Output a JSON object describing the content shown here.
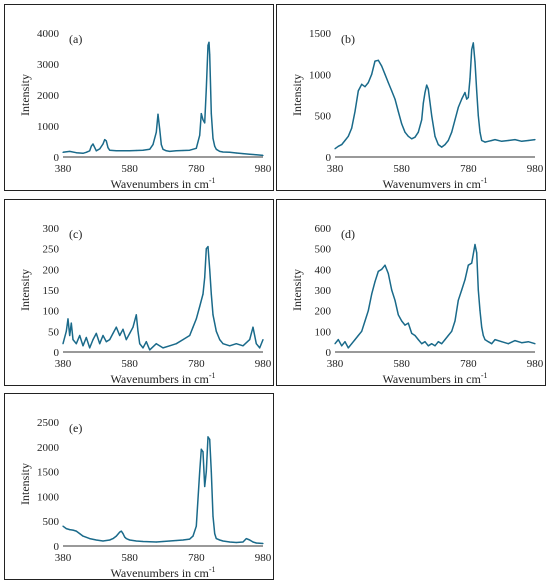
{
  "colors": {
    "series": "#1a6a8a",
    "frame": "#222222"
  },
  "chart_data": [
    {
      "type": "line",
      "panel_label": "(a)",
      "xlabel": "Wavenumbers in cm",
      "xlabel_sup": "-1",
      "ylabel": "Intensity",
      "xlim": [
        380,
        980
      ],
      "ylim": [
        0,
        4000
      ],
      "x_ticks": [
        380,
        580,
        780,
        980
      ],
      "y_ticks": [
        0,
        1000,
        2000,
        3000,
        4000
      ],
      "series": [
        {
          "x": [
            380,
            400,
            420,
            440,
            450,
            460,
            465,
            470,
            480,
            490,
            500,
            505,
            510,
            515,
            520,
            540,
            560,
            580,
            600,
            620,
            640,
            650,
            660,
            665,
            670,
            675,
            680,
            690,
            700,
            720,
            740,
            760,
            780,
            790,
            795,
            800,
            805,
            810,
            815,
            818,
            820,
            822,
            825,
            830,
            835,
            840,
            850,
            860,
            880,
            900,
            920,
            940,
            960,
            980
          ],
          "y": [
            150,
            180,
            140,
            120,
            150,
            200,
            350,
            420,
            200,
            260,
            420,
            560,
            520,
            300,
            220,
            200,
            200,
            200,
            210,
            220,
            250,
            400,
            800,
            1380,
            900,
            400,
            250,
            200,
            180,
            200,
            210,
            220,
            280,
            700,
            1400,
            1200,
            1100,
            2200,
            3600,
            3700,
            3300,
            2600,
            1400,
            600,
            350,
            250,
            180,
            160,
            150,
            130,
            110,
            90,
            70,
            50
          ]
        }
      ]
    },
    {
      "type": "line",
      "panel_label": "(b)",
      "xlabel": "Wavenumvers in cm",
      "xlabel_sup": "-1",
      "ylabel": "Intensity",
      "xlim": [
        380,
        980
      ],
      "ylim": [
        0,
        1500
      ],
      "x_ticks": [
        380,
        580,
        780,
        980
      ],
      "y_ticks": [
        0,
        500,
        1000,
        1500
      ],
      "series": [
        {
          "x": [
            380,
            390,
            400,
            410,
            420,
            430,
            440,
            450,
            460,
            470,
            480,
            490,
            500,
            510,
            520,
            530,
            540,
            550,
            560,
            570,
            580,
            590,
            600,
            610,
            620,
            630,
            640,
            645,
            650,
            655,
            660,
            670,
            680,
            690,
            700,
            710,
            720,
            730,
            740,
            750,
            760,
            770,
            775,
            780,
            785,
            790,
            795,
            800,
            805,
            810,
            815,
            820,
            830,
            840,
            850,
            860,
            880,
            900,
            920,
            940,
            960,
            980
          ],
          "y": [
            100,
            130,
            150,
            200,
            250,
            350,
            550,
            800,
            880,
            850,
            900,
            1000,
            1160,
            1170,
            1100,
            1000,
            900,
            800,
            700,
            550,
            400,
            300,
            250,
            220,
            240,
            300,
            450,
            650,
            780,
            870,
            820,
            500,
            250,
            150,
            120,
            150,
            200,
            300,
            450,
            600,
            700,
            780,
            700,
            720,
            950,
            1300,
            1380,
            1150,
            800,
            500,
            300,
            200,
            180,
            190,
            200,
            210,
            190,
            200,
            210,
            190,
            200,
            210
          ]
        }
      ]
    },
    {
      "type": "line",
      "panel_label": "(c)",
      "xlabel": "Wavenumbers in cm",
      "xlabel_sup": "-1",
      "ylabel": "Intensity",
      "xlim": [
        380,
        980
      ],
      "ylim": [
        0,
        300
      ],
      "x_ticks": [
        380,
        580,
        780,
        980
      ],
      "y_ticks": [
        0,
        50,
        100,
        150,
        200,
        250,
        300
      ],
      "series": [
        {
          "x": [
            380,
            390,
            395,
            400,
            405,
            410,
            420,
            430,
            440,
            450,
            460,
            470,
            480,
            490,
            500,
            510,
            520,
            530,
            540,
            550,
            560,
            570,
            580,
            590,
            600,
            605,
            610,
            620,
            630,
            640,
            660,
            680,
            700,
            720,
            740,
            760,
            770,
            780,
            790,
            800,
            805,
            810,
            815,
            820,
            825,
            830,
            840,
            850,
            860,
            880,
            900,
            920,
            940,
            950,
            960,
            970,
            980
          ],
          "y": [
            20,
            50,
            80,
            40,
            70,
            30,
            20,
            40,
            15,
            35,
            10,
            30,
            45,
            20,
            40,
            25,
            30,
            45,
            60,
            40,
            55,
            30,
            45,
            60,
            90,
            50,
            20,
            10,
            25,
            5,
            20,
            10,
            15,
            20,
            30,
            40,
            60,
            80,
            110,
            140,
            180,
            250,
            255,
            200,
            140,
            90,
            50,
            30,
            20,
            15,
            20,
            15,
            30,
            60,
            20,
            10,
            30
          ]
        }
      ]
    },
    {
      "type": "line",
      "panel_label": "(d)",
      "xlabel": "Wavenumbers in cm",
      "xlabel_sup": "-1",
      "ylabel": "Intensity",
      "xlim": [
        380,
        980
      ],
      "ylim": [
        0,
        600
      ],
      "x_ticks": [
        380,
        580,
        780,
        980
      ],
      "y_ticks": [
        0,
        100,
        200,
        300,
        400,
        500,
        600
      ],
      "series": [
        {
          "x": [
            380,
            390,
            400,
            410,
            420,
            430,
            440,
            450,
            460,
            470,
            480,
            490,
            500,
            510,
            520,
            530,
            540,
            550,
            560,
            570,
            580,
            590,
            600,
            610,
            620,
            630,
            640,
            650,
            660,
            670,
            680,
            690,
            700,
            710,
            720,
            730,
            740,
            750,
            760,
            770,
            780,
            790,
            800,
            805,
            810,
            815,
            820,
            825,
            830,
            840,
            850,
            860,
            880,
            900,
            920,
            940,
            960,
            980
          ],
          "y": [
            40,
            60,
            30,
            50,
            20,
            40,
            60,
            80,
            100,
            150,
            200,
            280,
            340,
            390,
            400,
            420,
            380,
            300,
            250,
            180,
            150,
            130,
            140,
            90,
            80,
            60,
            40,
            50,
            30,
            40,
            30,
            50,
            40,
            60,
            80,
            100,
            150,
            250,
            300,
            350,
            420,
            430,
            520,
            480,
            300,
            200,
            120,
            80,
            60,
            50,
            40,
            60,
            50,
            40,
            55,
            45,
            50,
            40
          ]
        }
      ]
    },
    {
      "type": "line",
      "panel_label": "(e)",
      "xlabel": "Wavenumbers in cm",
      "xlabel_sup": "-1",
      "ylabel": "Intensity",
      "xlim": [
        380,
        980
      ],
      "ylim": [
        0,
        2500
      ],
      "x_ticks": [
        380,
        580,
        780,
        980
      ],
      "y_ticks": [
        0,
        500,
        1000,
        1500,
        2000,
        2500
      ],
      "series": [
        {
          "x": [
            380,
            390,
            400,
            410,
            420,
            430,
            440,
            460,
            480,
            500,
            520,
            530,
            540,
            550,
            555,
            560,
            565,
            570,
            580,
            600,
            620,
            640,
            660,
            680,
            700,
            720,
            740,
            760,
            770,
            780,
            790,
            795,
            800,
            805,
            810,
            815,
            820,
            825,
            830,
            835,
            840,
            850,
            860,
            880,
            900,
            920,
            930,
            940,
            950,
            960,
            980
          ],
          "y": [
            400,
            350,
            330,
            320,
            300,
            250,
            200,
            150,
            120,
            100,
            120,
            150,
            200,
            280,
            300,
            250,
            180,
            150,
            120,
            100,
            90,
            85,
            80,
            90,
            100,
            110,
            120,
            140,
            200,
            400,
            1500,
            1950,
            1900,
            1200,
            1500,
            2200,
            2150,
            1500,
            600,
            250,
            150,
            120,
            100,
            80,
            70,
            80,
            150,
            120,
            80,
            60,
            50
          ]
        }
      ]
    }
  ]
}
